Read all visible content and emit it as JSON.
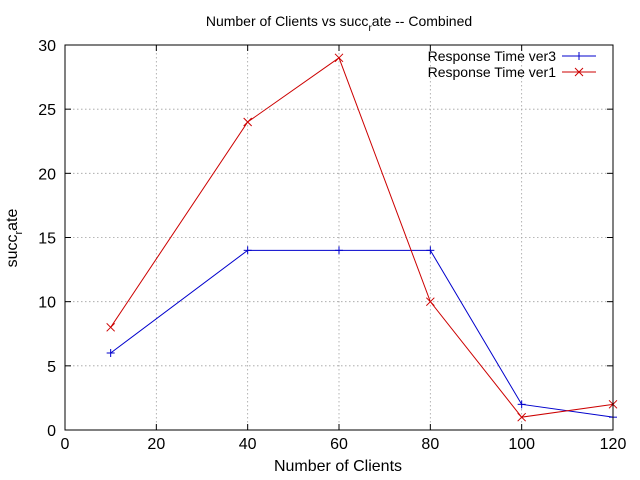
{
  "chart_data": {
    "type": "line",
    "title": {
      "pre": "Number of Clients vs succ",
      "sub": "r",
      "post": "ate -- Combined"
    },
    "xlabel": "Number of Clients",
    "ylabel": {
      "pre": "succ",
      "sub": "r",
      "post": "ate"
    },
    "xlim": [
      0,
      120
    ],
    "ylim": [
      0,
      30
    ],
    "xticks": [
      0,
      20,
      40,
      60,
      80,
      100,
      120
    ],
    "yticks": [
      0,
      5,
      10,
      15,
      20,
      25,
      30
    ],
    "grid": true,
    "legend_position": "top-right",
    "x": [
      10,
      40,
      60,
      80,
      100,
      120
    ],
    "series": [
      {
        "name": "Response Time ver3",
        "values": [
          6,
          14,
          14,
          14,
          2,
          1
        ],
        "color": "#0000cc",
        "marker": "plus"
      },
      {
        "name": "Response Time ver1",
        "values": [
          8,
          24,
          29,
          10,
          1,
          2
        ],
        "color": "#cc0000",
        "marker": "cross"
      }
    ]
  }
}
